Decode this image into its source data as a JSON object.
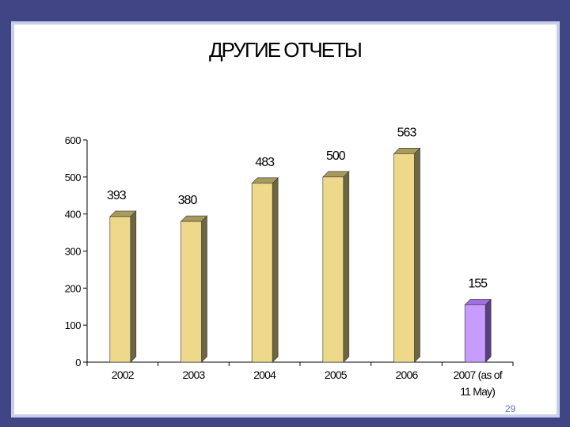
{
  "slide": {
    "title": "ДРУГИЕ ОТЧЕТЫ",
    "page_number": "29"
  },
  "chart_data": {
    "type": "bar",
    "title": "ДРУГИЕ ОТЧЕТЫ",
    "categories": [
      "2002",
      "2003",
      "2004",
      "2005",
      "2006",
      "2007 (as of 11 May)"
    ],
    "values": [
      393,
      380,
      483,
      500,
      563,
      155
    ],
    "data_labels": [
      "393",
      "380",
      "483",
      "500",
      "563",
      "155"
    ],
    "yticks": [
      0,
      100,
      200,
      300,
      400,
      500,
      600
    ],
    "ylim": [
      0,
      600
    ],
    "grid": false,
    "colors": {
      "bar": "#eed98a",
      "bar_side": "#6e6640",
      "bar_highlight": "#c79bff",
      "bar_highlight_side": "#5a3f80",
      "axis": "#000000"
    }
  }
}
